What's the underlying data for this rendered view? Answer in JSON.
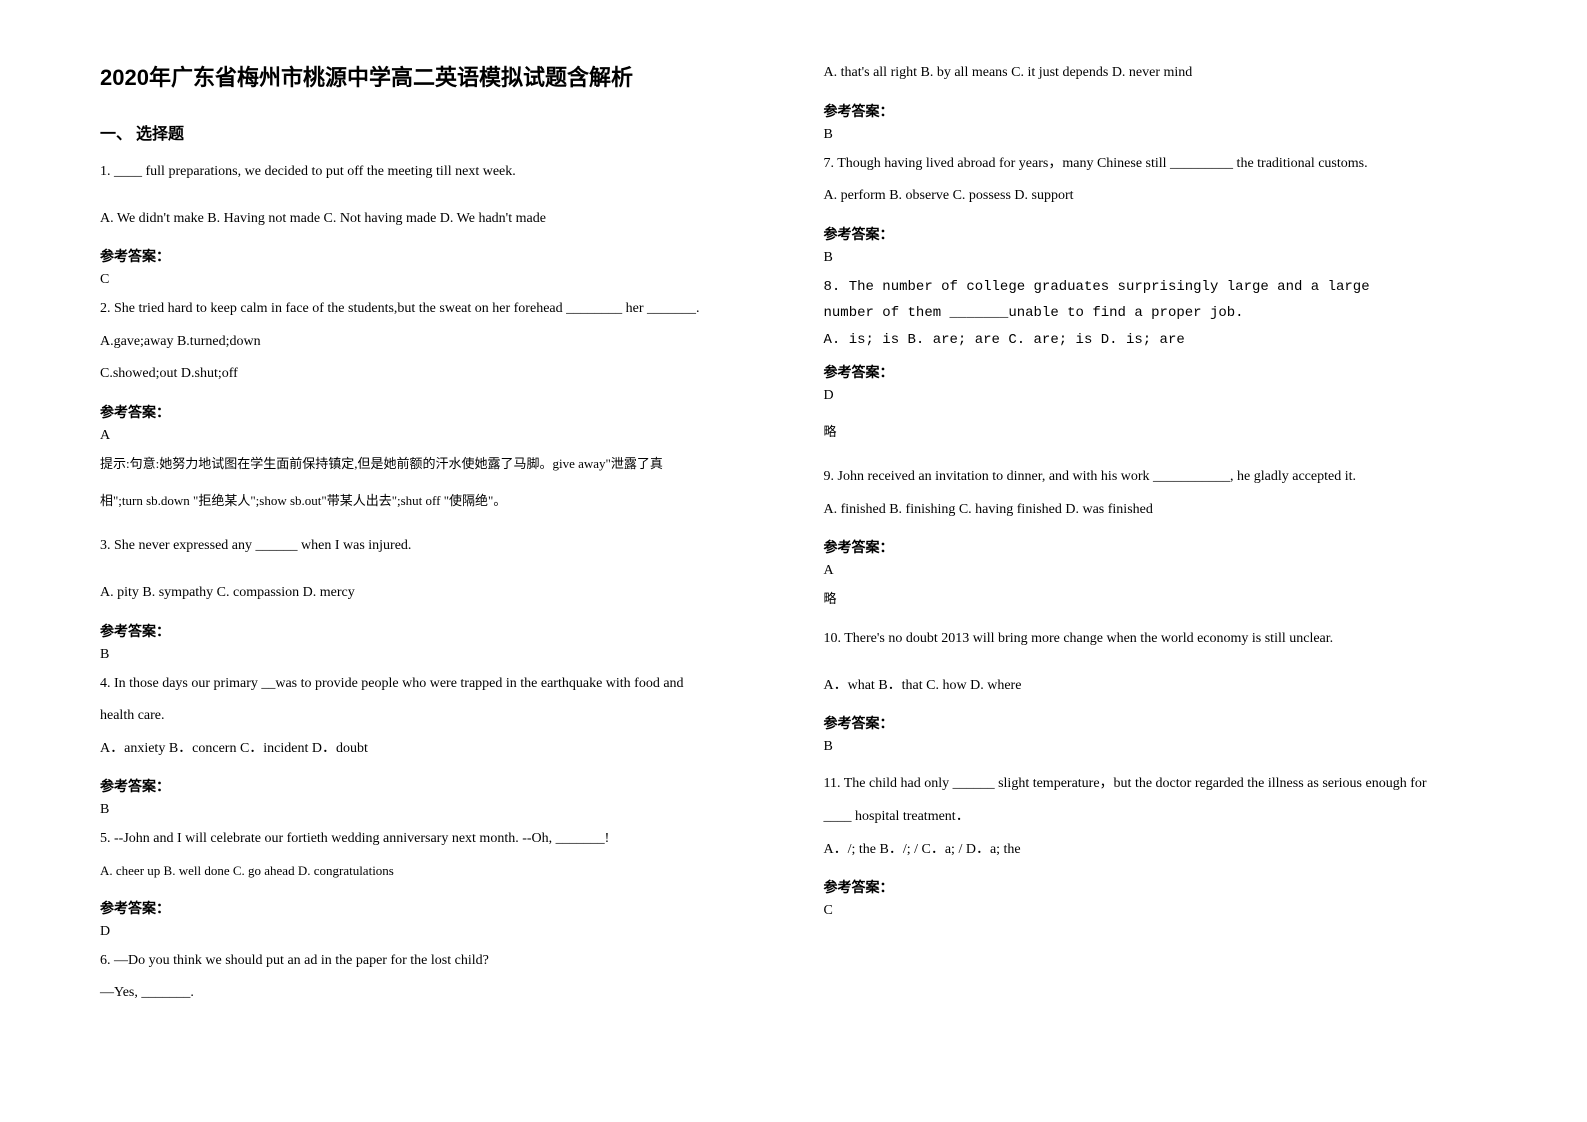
{
  "title": "2020年广东省梅州市桃源中学高二英语模拟试题含解析",
  "section1_header": "一、 选择题",
  "left": {
    "q1": {
      "text": "1. ____ full preparations, we decided to put off the meeting till next week.",
      "options": "A. We didn't make  B. Having not made  C. Not having made   D. We hadn't made",
      "answer_label": "参考答案：",
      "answer": "C"
    },
    "q2": {
      "text": "2. She tried hard to keep calm in face of the students,but the sweat on her forehead ________ her _______.",
      "options_a": "A.gave;away     B.turned;down",
      "options_b": "C.showed;out   D.shut;off",
      "answer_label": "参考答案：",
      "answer": "A",
      "hint1": "提示:句意:她努力地试图在学生面前保持镇定,但是她前额的汗水使她露了马脚。give away\"泄露了真",
      "hint2": "相\";turn sb.down \"拒绝某人\";show sb.out\"带某人出去\";shut off \"使隔绝\"。"
    },
    "q3": {
      "text": "3. She never expressed any ______ when I was injured.",
      "options": "A.  pity             B.  sympathy       C.  compassion          D.  mercy",
      "answer_label": "参考答案：",
      "answer": "B"
    },
    "q4": {
      "text": "4. In those days our primary __was to provide people who were trapped in the earthquake with food and",
      "text2": "health care.",
      "options": "A．anxiety       B．concern      C．incident     D．doubt",
      "answer_label": "参考答案：",
      "answer": "B"
    },
    "q5": {
      "text": "5. --John and I will celebrate our fortieth wedding anniversary next month.   --Oh, _______!",
      "options": "       A. cheer up                                 B. well done                          C. go ahead                           D. congratulations",
      "answer_label": "参考答案：",
      "answer": "D"
    },
    "q6": {
      "text": "6. —Do you think we should put an ad in the paper for the lost child?",
      "text2": "—Yes, _______."
    }
  },
  "right": {
    "q6": {
      "options": "A. that's all right  B. by all means  C. it just depends D. never mind",
      "answer_label": "参考答案：",
      "answer": "B"
    },
    "q7": {
      "text": "7. Though having lived abroad for years，many Chinese still _________ the traditional customs.",
      "options": "       A. perform                  B. observe     C. possess                    D. support",
      "answer_label": "参考答案：",
      "answer": "B"
    },
    "q8": {
      "text1": "8. The number of college graduates               surprisingly large and a large",
      "text2": "number of them _______unable to find a proper job.",
      "options": "A. is; is     B. are; are     C. are; is     D. is; are",
      "answer_label": "参考答案：",
      "answer": "D",
      "note": "略"
    },
    "q9": {
      "text": "9. John received an invitation to dinner, and with his work ___________, he gladly accepted it.",
      "options": "   A. finished        B. finishing        C. having finished    D. was finished",
      "answer_label": "参考答案：",
      "answer": "A",
      "note": "略"
    },
    "q10": {
      "text": "10. There's no doubt        2013 will bring more change when the world economy is still unclear.",
      "options": "A．what                            B．that                         C.   how                         D.   where",
      "answer_label": "参考答案：",
      "answer": "B"
    },
    "q11": {
      "text": "11. The child had only ______ slight temperature，but the doctor regarded the illness as serious enough for",
      "text2": " ____ hospital treatment．",
      "options": "A．/; the        B．/; /           C．a; /          D．a; the",
      "answer_label": "参考答案：",
      "answer": "C"
    }
  }
}
